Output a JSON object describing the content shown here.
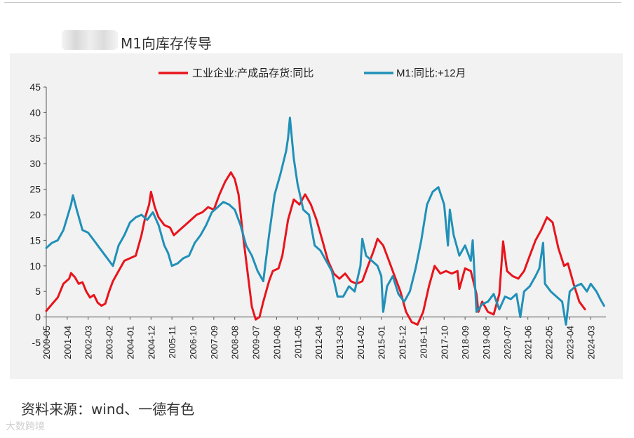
{
  "title": "M1向库存传导",
  "source": "资料来源：wind、一德有色",
  "watermark": "大数跨境",
  "chart_data": {
    "type": "line",
    "title": "",
    "xlabel": "",
    "ylabel": "",
    "ylim": [
      -5,
      45
    ],
    "yticks": [
      -5,
      0,
      5,
      10,
      15,
      20,
      25,
      30,
      35,
      40,
      45
    ],
    "xlim": [
      "2000-05",
      "2024-11"
    ],
    "xticks": [
      "2000-05",
      "2001-04",
      "2002-03",
      "2003-02",
      "2004-01",
      "2004-12",
      "2005-11",
      "2006-10",
      "2007-09",
      "2008-08",
      "2009-07",
      "2010-06",
      "2011-05",
      "2012-04",
      "2013-03",
      "2014-02",
      "2015-01",
      "2015-12",
      "2016-11",
      "2017-10",
      "2018-09",
      "2019-08",
      "2020-07",
      "2021-06",
      "2022-05",
      "2023-04",
      "2024-03"
    ],
    "legend_position": "top",
    "grid": false,
    "series": [
      {
        "name": "工业企业:产成品存货:同比",
        "color": "#e8141c",
        "points": [
          [
            "2000-05",
            1.2
          ],
          [
            "2000-08",
            2.5
          ],
          [
            "2000-11",
            3.8
          ],
          [
            "2001-02",
            6.5
          ],
          [
            "2001-05",
            7.5
          ],
          [
            "2001-06",
            8.6
          ],
          [
            "2001-08",
            7.8
          ],
          [
            "2001-10",
            6.5
          ],
          [
            "2001-12",
            6.8
          ],
          [
            "2002-02",
            5.0
          ],
          [
            "2002-04",
            3.8
          ],
          [
            "2002-06",
            4.3
          ],
          [
            "2002-08",
            2.8
          ],
          [
            "2002-10",
            2.2
          ],
          [
            "2002-12",
            2.6
          ],
          [
            "2003-02",
            5.0
          ],
          [
            "2003-04",
            7.0
          ],
          [
            "2003-07",
            9.0
          ],
          [
            "2003-10",
            11.0
          ],
          [
            "2004-01",
            11.5
          ],
          [
            "2004-04",
            12.0
          ],
          [
            "2004-07",
            16.0
          ],
          [
            "2004-09",
            19.5
          ],
          [
            "2004-11",
            22.0
          ],
          [
            "2004-12",
            24.5
          ],
          [
            "2005-02",
            21.5
          ],
          [
            "2005-04",
            19.5
          ],
          [
            "2005-07",
            18.0
          ],
          [
            "2005-10",
            17.5
          ],
          [
            "2005-12",
            16.0
          ],
          [
            "2006-03",
            17.0
          ],
          [
            "2006-06",
            18.0
          ],
          [
            "2006-09",
            19.0
          ],
          [
            "2006-12",
            20.0
          ],
          [
            "2007-03",
            20.5
          ],
          [
            "2007-06",
            21.5
          ],
          [
            "2007-09",
            21.0
          ],
          [
            "2007-12",
            24.0
          ],
          [
            "2008-03",
            26.5
          ],
          [
            "2008-06",
            28.3
          ],
          [
            "2008-08",
            27.0
          ],
          [
            "2008-10",
            24.0
          ],
          [
            "2008-12",
            17.0
          ],
          [
            "2009-03",
            8.0
          ],
          [
            "2009-05",
            2.0
          ],
          [
            "2009-07",
            -0.5
          ],
          [
            "2009-09",
            0.0
          ],
          [
            "2009-11",
            3.0
          ],
          [
            "2010-02",
            7.0
          ],
          [
            "2010-04",
            9.0
          ],
          [
            "2010-07",
            9.5
          ],
          [
            "2010-09",
            12.0
          ],
          [
            "2010-12",
            19.0
          ],
          [
            "2011-03",
            23.0
          ],
          [
            "2011-06",
            22.0
          ],
          [
            "2011-09",
            24.0
          ],
          [
            "2011-12",
            22.0
          ],
          [
            "2012-03",
            19.0
          ],
          [
            "2012-06",
            15.0
          ],
          [
            "2012-09",
            11.0
          ],
          [
            "2012-12",
            8.5
          ],
          [
            "2013-03",
            7.5
          ],
          [
            "2013-06",
            8.5
          ],
          [
            "2013-09",
            7.0
          ],
          [
            "2013-12",
            6.5
          ],
          [
            "2014-03",
            7.0
          ],
          [
            "2014-06",
            10.0
          ],
          [
            "2014-09",
            13.0
          ],
          [
            "2014-11",
            15.3
          ],
          [
            "2015-02",
            14.0
          ],
          [
            "2015-05",
            11.0
          ],
          [
            "2015-08",
            8.0
          ],
          [
            "2015-11",
            5.0
          ],
          [
            "2016-02",
            1.0
          ],
          [
            "2016-05",
            -1.0
          ],
          [
            "2016-08",
            -1.5
          ],
          [
            "2016-11",
            1.0
          ],
          [
            "2017-02",
            6.0
          ],
          [
            "2017-05",
            10.0
          ],
          [
            "2017-08",
            8.5
          ],
          [
            "2017-11",
            9.0
          ],
          [
            "2018-02",
            8.5
          ],
          [
            "2018-05",
            9.0
          ],
          [
            "2018-06",
            5.5
          ],
          [
            "2018-09",
            9.5
          ],
          [
            "2018-12",
            9.0
          ],
          [
            "2019-03",
            4.5
          ],
          [
            "2019-04",
            1.0
          ],
          [
            "2019-06",
            3.0
          ],
          [
            "2019-09",
            1.0
          ],
          [
            "2019-12",
            0.5
          ],
          [
            "2020-03",
            4.5
          ],
          [
            "2020-05",
            14.8
          ],
          [
            "2020-07",
            9.0
          ],
          [
            "2020-10",
            8.0
          ],
          [
            "2021-01",
            7.5
          ],
          [
            "2021-04",
            9.0
          ],
          [
            "2021-07",
            12.0
          ],
          [
            "2021-10",
            15.0
          ],
          [
            "2022-01",
            17.0
          ],
          [
            "2022-04",
            19.5
          ],
          [
            "2022-07",
            18.5
          ],
          [
            "2022-10",
            13.5
          ],
          [
            "2023-01",
            10.0
          ],
          [
            "2023-03",
            10.5
          ],
          [
            "2023-06",
            6.5
          ],
          [
            "2023-09",
            3.0
          ],
          [
            "2023-12",
            1.5
          ]
        ]
      },
      {
        "name": "M1:同比:+12月",
        "color": "#2090b8",
        "points": [
          [
            "2000-05",
            13.5
          ],
          [
            "2000-08",
            14.5
          ],
          [
            "2000-11",
            15.0
          ],
          [
            "2001-02",
            17.0
          ],
          [
            "2001-04",
            19.5
          ],
          [
            "2001-06",
            22.0
          ],
          [
            "2001-07",
            23.8
          ],
          [
            "2001-09",
            21.0
          ],
          [
            "2001-12",
            17.0
          ],
          [
            "2002-03",
            16.5
          ],
          [
            "2002-06",
            15.0
          ],
          [
            "2002-09",
            13.5
          ],
          [
            "2002-12",
            12.0
          ],
          [
            "2003-02",
            11.0
          ],
          [
            "2003-04",
            10.0
          ],
          [
            "2003-07",
            14.0
          ],
          [
            "2003-10",
            16.0
          ],
          [
            "2004-01",
            18.5
          ],
          [
            "2004-04",
            19.5
          ],
          [
            "2004-07",
            20.0
          ],
          [
            "2004-10",
            19.0
          ],
          [
            "2005-01",
            20.5
          ],
          [
            "2005-04",
            18.0
          ],
          [
            "2005-07",
            14.0
          ],
          [
            "2005-09",
            12.5
          ],
          [
            "2005-11",
            10.0
          ],
          [
            "2006-02",
            10.5
          ],
          [
            "2006-05",
            11.5
          ],
          [
            "2006-08",
            12.0
          ],
          [
            "2006-11",
            14.5
          ],
          [
            "2007-02",
            16.0
          ],
          [
            "2007-05",
            18.0
          ],
          [
            "2007-08",
            20.5
          ],
          [
            "2007-11",
            21.5
          ],
          [
            "2008-02",
            22.5
          ],
          [
            "2008-05",
            22.0
          ],
          [
            "2008-08",
            21.0
          ],
          [
            "2008-11",
            18.0
          ],
          [
            "2009-02",
            14.0
          ],
          [
            "2009-05",
            12.0
          ],
          [
            "2009-08",
            9.0
          ],
          [
            "2009-11",
            7.0
          ],
          [
            "2010-02",
            16.0
          ],
          [
            "2010-05",
            24.0
          ],
          [
            "2010-08",
            28.0
          ],
          [
            "2010-11",
            32.5
          ],
          [
            "2010-12",
            35.0
          ],
          [
            "2011-01",
            39.0
          ],
          [
            "2011-03",
            31.0
          ],
          [
            "2011-05",
            26.0
          ],
          [
            "2011-08",
            21.0
          ],
          [
            "2011-11",
            20.0
          ],
          [
            "2012-02",
            14.0
          ],
          [
            "2012-05",
            13.0
          ],
          [
            "2012-08",
            11.0
          ],
          [
            "2012-11",
            9.0
          ],
          [
            "2013-02",
            4.0
          ],
          [
            "2013-05",
            4.0
          ],
          [
            "2013-08",
            6.0
          ],
          [
            "2013-11",
            5.0
          ],
          [
            "2014-02",
            10.0
          ],
          [
            "2014-03",
            15.3
          ],
          [
            "2014-05",
            12.0
          ],
          [
            "2014-08",
            11.0
          ],
          [
            "2014-11",
            10.0
          ],
          [
            "2015-01",
            8.0
          ],
          [
            "2015-02",
            1.0
          ],
          [
            "2015-04",
            6.0
          ],
          [
            "2015-07",
            8.0
          ],
          [
            "2015-10",
            4.5
          ],
          [
            "2016-01",
            3.0
          ],
          [
            "2016-04",
            5.0
          ],
          [
            "2016-07",
            9.5
          ],
          [
            "2016-10",
            15.0
          ],
          [
            "2017-01",
            22.0
          ],
          [
            "2017-04",
            24.5
          ],
          [
            "2017-07",
            25.4
          ],
          [
            "2017-10",
            22.0
          ],
          [
            "2017-12",
            14.0
          ],
          [
            "2018-01",
            21.0
          ],
          [
            "2018-03",
            16.0
          ],
          [
            "2018-06",
            12.0
          ],
          [
            "2018-09",
            14.0
          ],
          [
            "2018-12",
            11.0
          ],
          [
            "2019-01",
            15.0
          ],
          [
            "2019-03",
            1.0
          ],
          [
            "2019-06",
            2.5
          ],
          [
            "2019-09",
            3.0
          ],
          [
            "2019-12",
            4.5
          ],
          [
            "2020-03",
            1.5
          ],
          [
            "2020-06",
            4.0
          ],
          [
            "2020-09",
            3.5
          ],
          [
            "2020-12",
            4.5
          ],
          [
            "2021-02",
            0.0
          ],
          [
            "2021-04",
            5.0
          ],
          [
            "2021-07",
            6.0
          ],
          [
            "2021-10",
            8.0
          ],
          [
            "2021-12",
            9.5
          ],
          [
            "2022-02",
            14.5
          ],
          [
            "2022-03",
            6.5
          ],
          [
            "2022-06",
            5.0
          ],
          [
            "2022-09",
            4.0
          ],
          [
            "2022-12",
            3.0
          ],
          [
            "2023-02",
            -1.5
          ],
          [
            "2023-04",
            5.0
          ],
          [
            "2023-07",
            6.0
          ],
          [
            "2023-10",
            6.5
          ],
          [
            "2024-01",
            5.0
          ],
          [
            "2024-03",
            6.5
          ],
          [
            "2024-06",
            5.0
          ],
          [
            "2024-08",
            3.5
          ],
          [
            "2024-10",
            2.2
          ]
        ]
      }
    ]
  }
}
